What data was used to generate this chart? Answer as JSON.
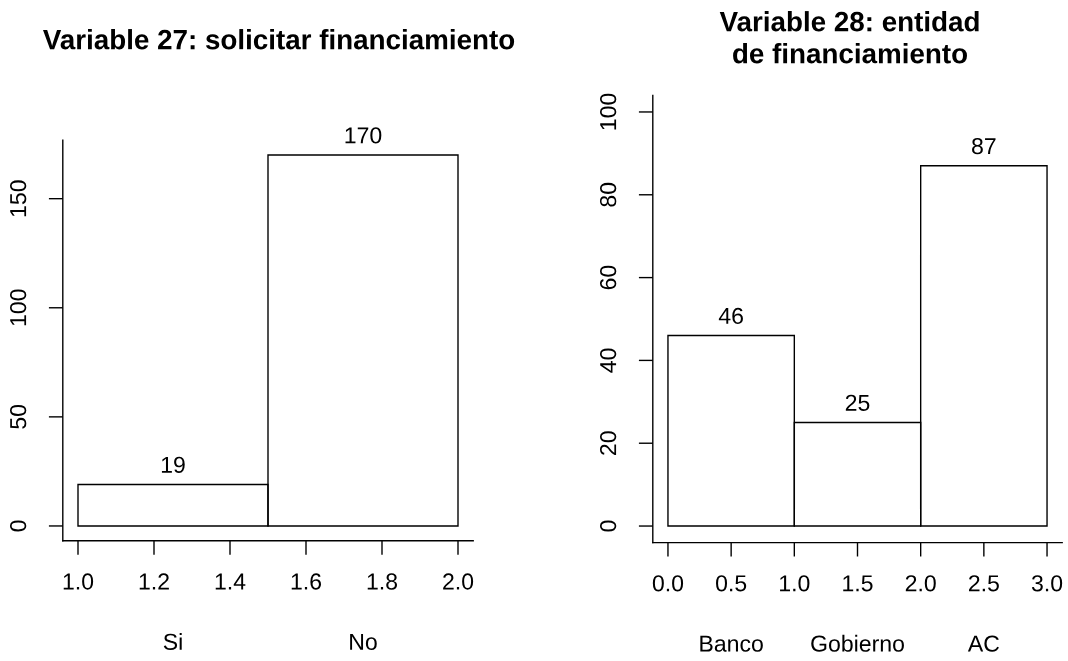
{
  "chart_data": [
    {
      "type": "histogram",
      "title": "Variable 27: solicitar financiamiento",
      "bins": [
        1.0,
        1.5,
        2.0
      ],
      "values": [
        19,
        170
      ],
      "color": "#000000",
      "xlim": [
        0.96,
        2.04
      ],
      "xticks": [
        {
          "value": 1,
          "label": "1.0"
        },
        1.2,
        1.4,
        1.6,
        1.8,
        {
          "value": 2,
          "label": "2.0"
        }
      ],
      "ylim": [
        -6.8,
        176.8
      ],
      "yticks": [
        0,
        50,
        100,
        150
      ],
      "data_labels": true,
      "annotations": [
        "Si",
        "No"
      ]
    },
    {
      "type": "histogram",
      "title": "Variable 28: entidad\nde financiamiento",
      "bins": [
        0,
        1,
        2,
        3
      ],
      "values": [
        46,
        25,
        87
      ],
      "color": "#000000",
      "xlim": [
        -0.12,
        3.12
      ],
      "xticks": [
        {
          "value": 0,
          "label": "0.0"
        },
        0.5,
        {
          "value": 1,
          "label": "1.0"
        },
        1.5,
        {
          "value": 2,
          "label": "2.0"
        },
        2.5,
        {
          "value": 3,
          "label": "3.0"
        }
      ],
      "ylim": [
        -4,
        104
      ],
      "yticks": [
        0,
        20,
        40,
        60,
        80,
        100
      ],
      "data_labels": true,
      "annotations": [
        "Banco",
        "Gobierno",
        "AC"
      ]
    }
  ]
}
